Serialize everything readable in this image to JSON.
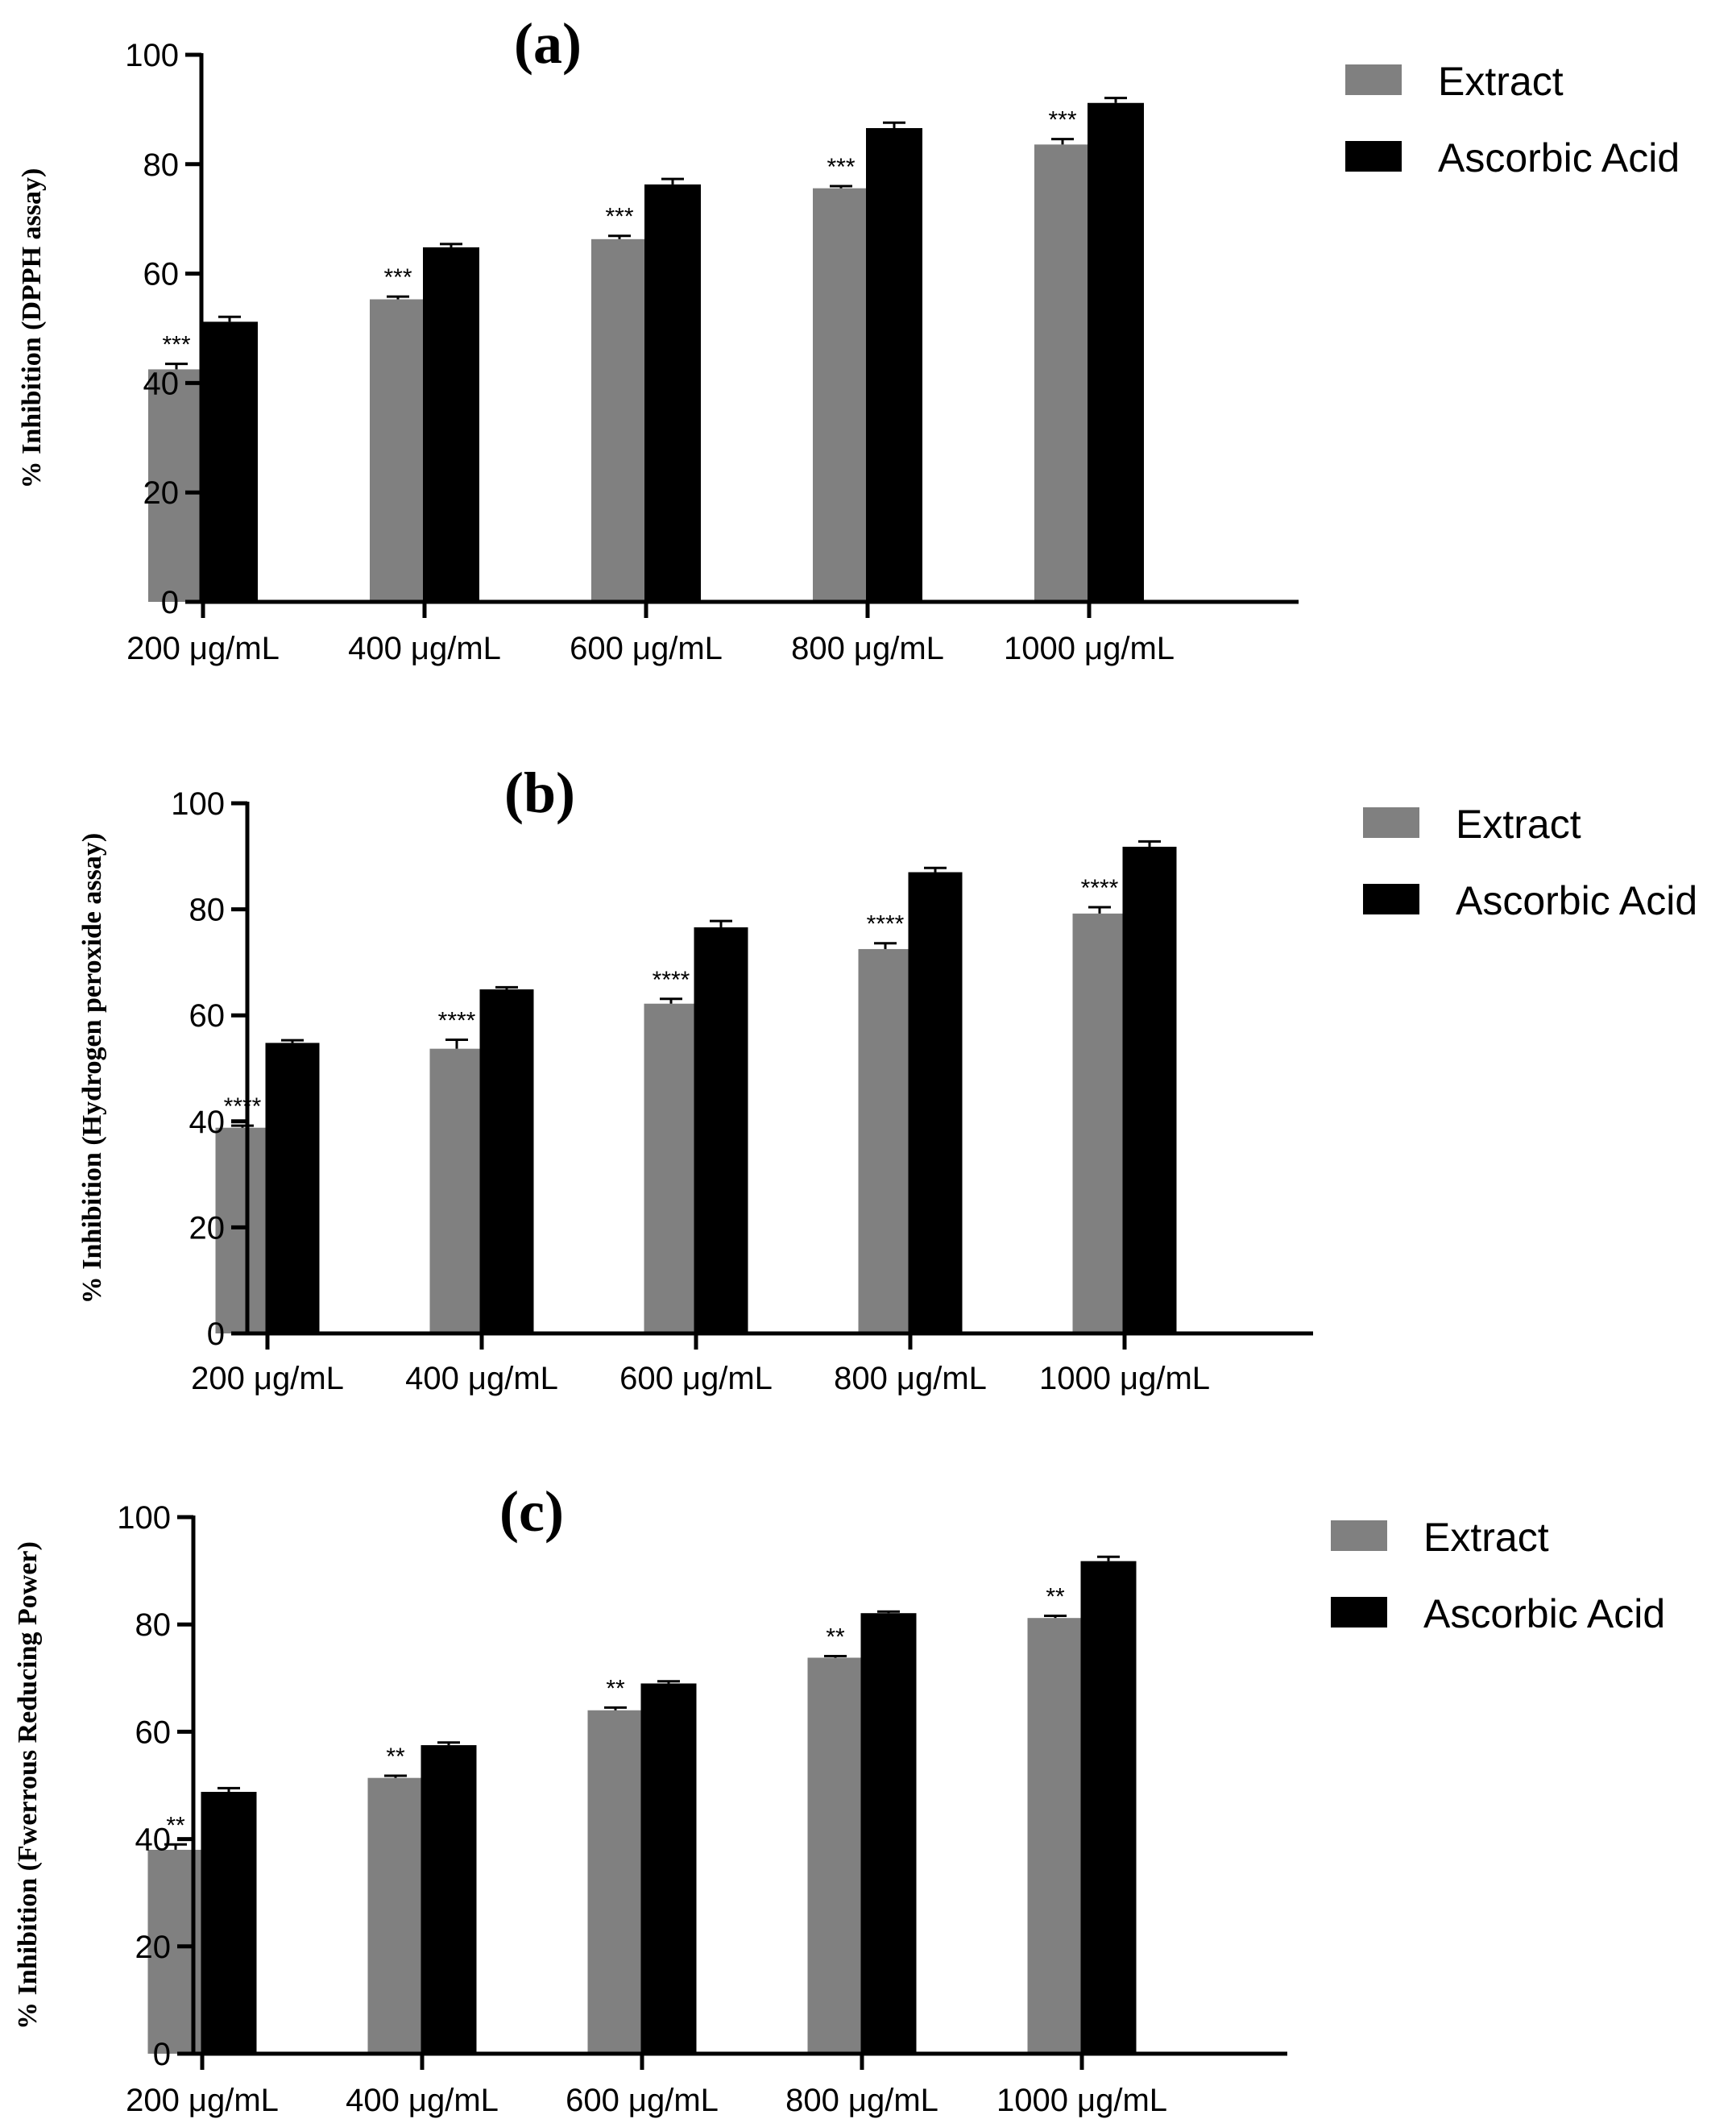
{
  "colors": {
    "extract": "#808080",
    "ascorbic": "#000000"
  },
  "chart_data": [
    {
      "type": "bar",
      "title": "(a)",
      "ylabel": "% Inhibition (DPPH assay)",
      "xlabel": "",
      "ylim": [
        0,
        100
      ],
      "yticks": [
        0,
        20,
        40,
        60,
        80,
        100
      ],
      "categories": [
        "200 μg/mL",
        "400 μg/mL",
        "600 μg/mL",
        "800 μg/mL",
        "1000 μg/mL"
      ],
      "series": [
        {
          "name": "Extract",
          "values": [
            42.5,
            55.3,
            66.3,
            75.6,
            83.6
          ],
          "errors": [
            1.0,
            0.5,
            0.6,
            0.4,
            1.0
          ],
          "significance": [
            "***",
            "***",
            "***",
            "***",
            "***"
          ]
        },
        {
          "name": "Ascorbic Acid",
          "values": [
            51.2,
            64.8,
            76.3,
            86.6,
            91.2
          ],
          "errors": [
            0.9,
            0.6,
            1.0,
            1.0,
            0.9
          ]
        }
      ],
      "legend": "right"
    },
    {
      "type": "bar",
      "title": "(b)",
      "ylabel": "% Inhibition (Hydrogen peroxide assay)",
      "xlabel": "",
      "ylim": [
        0,
        100
      ],
      "yticks": [
        0,
        20,
        40,
        60,
        80,
        100
      ],
      "categories": [
        "200 μg/mL",
        "400 μg/mL",
        "600 μg/mL",
        "800 μg/mL",
        "1000 μg/mL"
      ],
      "series": [
        {
          "name": "Extract",
          "values": [
            38.8,
            53.7,
            62.2,
            72.5,
            79.2
          ],
          "errors": [
            0.4,
            1.7,
            0.9,
            1.1,
            1.2
          ],
          "significance": [
            "****",
            "****",
            "****",
            "****",
            "****"
          ]
        },
        {
          "name": "Ascorbic Acid",
          "values": [
            54.8,
            64.9,
            76.6,
            87.0,
            91.8
          ],
          "errors": [
            0.5,
            0.4,
            1.2,
            0.8,
            1.0
          ]
        }
      ],
      "legend": "right"
    },
    {
      "type": "bar",
      "title": "(c)",
      "ylabel": "% Inhibition (Fwerrous Reducing Power)",
      "xlabel": "",
      "ylim": [
        0,
        100
      ],
      "yticks": [
        0,
        20,
        40,
        60,
        80,
        100
      ],
      "categories": [
        "200 μg/mL",
        "400 μg/mL",
        "600 μg/mL",
        "800 μg/mL",
        "1000 μg/mL"
      ],
      "series": [
        {
          "name": "Extract",
          "values": [
            38.0,
            51.4,
            64.0,
            73.8,
            81.2
          ],
          "errors": [
            1.0,
            0.4,
            0.5,
            0.3,
            0.4
          ],
          "significance": [
            "**",
            "**",
            "**",
            "**",
            "**"
          ]
        },
        {
          "name": "Ascorbic Acid",
          "values": [
            48.8,
            57.5,
            69.0,
            82.1,
            91.8
          ],
          "errors": [
            0.7,
            0.5,
            0.4,
            0.3,
            0.8
          ]
        }
      ],
      "legend": "right"
    }
  ]
}
